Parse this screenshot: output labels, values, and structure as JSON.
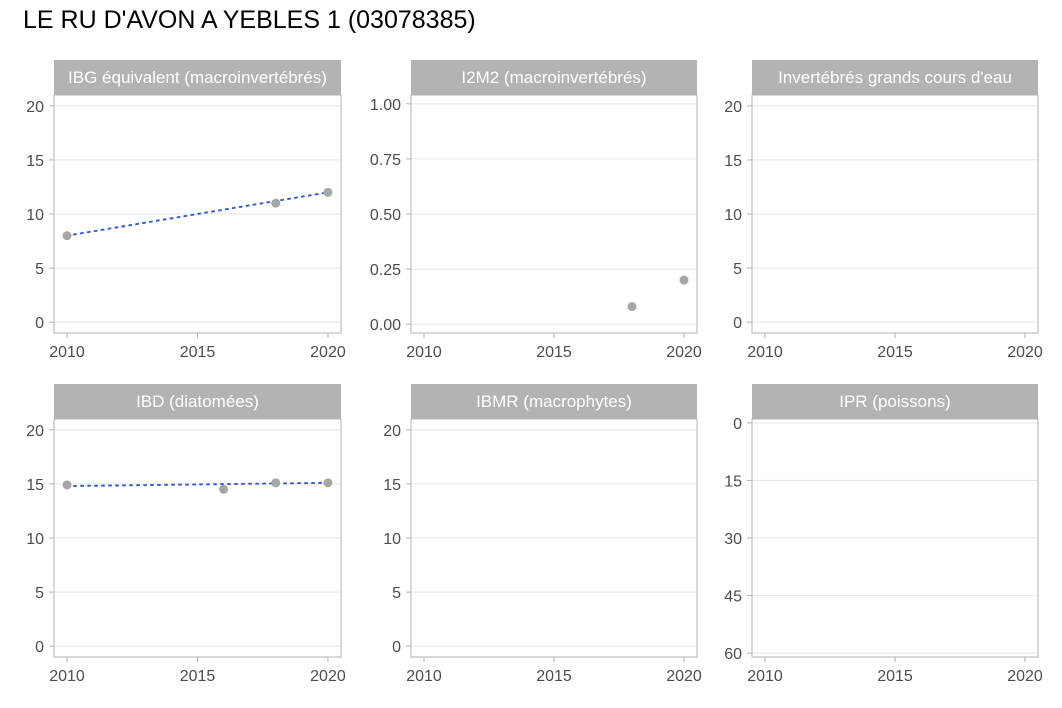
{
  "title": "LE RU D'AVON A YEBLES 1 (03078385)",
  "colors": {
    "strip": "#b3b3b3",
    "panel_border": "#b3b3b3",
    "grid": "#e6e6e6",
    "point": "#a6a6a6",
    "trend": "#3b5bdb",
    "tick_text": "#4d4d4d"
  },
  "chart_data": [
    {
      "type": "scatter",
      "title": "IBG équivalent (macroinvertébrés)",
      "xlim": [
        2009.5,
        2020.5
      ],
      "ylim": [
        -1,
        21
      ],
      "y_reversed": false,
      "x_ticks": [
        2010,
        2015,
        2020
      ],
      "y_ticks": [
        0,
        5,
        10,
        15,
        20
      ],
      "y_tick_labels": [
        "0",
        "5",
        "10",
        "15",
        "20"
      ],
      "points": [
        {
          "x": 2010,
          "y": 8
        },
        {
          "x": 2018,
          "y": 11
        },
        {
          "x": 2020,
          "y": 12
        }
      ],
      "trend": [
        {
          "x": 2010,
          "y": 8.0
        },
        {
          "x": 2020,
          "y": 12.0
        }
      ]
    },
    {
      "type": "scatter",
      "title": "I2M2 (macroinvertébrés)",
      "xlim": [
        2009.5,
        2020.5
      ],
      "ylim": [
        -0.04,
        1.04
      ],
      "y_reversed": false,
      "x_ticks": [
        2010,
        2015,
        2020
      ],
      "y_ticks": [
        0,
        0.25,
        0.5,
        0.75,
        1
      ],
      "y_tick_labels": [
        "0.00",
        "0.25",
        "0.50",
        "0.75",
        "1.00"
      ],
      "points": [
        {
          "x": 2018,
          "y": 0.08
        },
        {
          "x": 2020,
          "y": 0.2
        }
      ],
      "trend": []
    },
    {
      "type": "scatter",
      "title": "Invertébrés grands cours d'eau",
      "xlim": [
        2009.5,
        2020.5
      ],
      "ylim": [
        -1,
        21
      ],
      "y_reversed": false,
      "x_ticks": [
        2010,
        2015,
        2020
      ],
      "y_ticks": [
        0,
        5,
        10,
        15,
        20
      ],
      "y_tick_labels": [
        "0",
        "5",
        "10",
        "15",
        "20"
      ],
      "points": [],
      "trend": []
    },
    {
      "type": "scatter",
      "title": "IBD (diatomées)",
      "xlim": [
        2009.5,
        2020.5
      ],
      "ylim": [
        -1,
        21
      ],
      "y_reversed": false,
      "x_ticks": [
        2010,
        2015,
        2020
      ],
      "y_ticks": [
        0,
        5,
        10,
        15,
        20
      ],
      "y_tick_labels": [
        "0",
        "5",
        "10",
        "15",
        "20"
      ],
      "points": [
        {
          "x": 2010,
          "y": 14.9
        },
        {
          "x": 2016,
          "y": 14.5
        },
        {
          "x": 2018,
          "y": 15.1
        },
        {
          "x": 2020,
          "y": 15.1
        }
      ],
      "trend": [
        {
          "x": 2010,
          "y": 14.8
        },
        {
          "x": 2020,
          "y": 15.1
        }
      ]
    },
    {
      "type": "scatter",
      "title": "IBMR (macrophytes)",
      "xlim": [
        2009.5,
        2020.5
      ],
      "ylim": [
        -1,
        21
      ],
      "y_reversed": false,
      "x_ticks": [
        2010,
        2015,
        2020
      ],
      "y_ticks": [
        0,
        5,
        10,
        15,
        20
      ],
      "y_tick_labels": [
        "0",
        "5",
        "10",
        "15",
        "20"
      ],
      "points": [],
      "trend": []
    },
    {
      "type": "scatter",
      "title": "IPR (poissons)",
      "xlim": [
        2009.5,
        2020.5
      ],
      "ylim": [
        -1,
        61
      ],
      "y_reversed": true,
      "x_ticks": [
        2010,
        2015,
        2020
      ],
      "y_ticks": [
        0,
        15,
        30,
        45,
        60
      ],
      "y_tick_labels": [
        "0",
        "15",
        "30",
        "45",
        "60"
      ],
      "points": [],
      "trend": []
    }
  ]
}
